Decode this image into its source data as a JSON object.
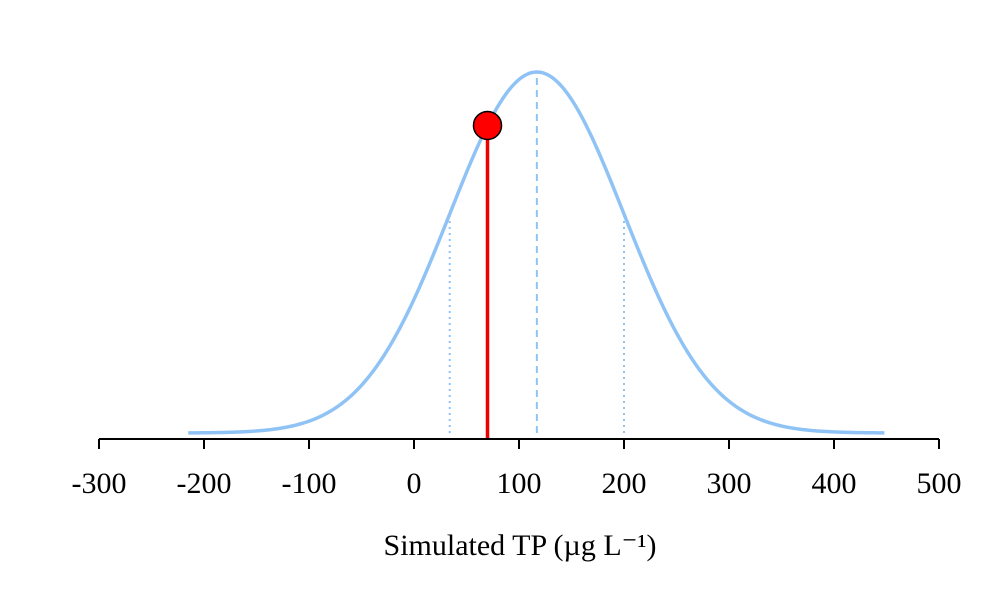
{
  "chart_data": {
    "type": "line",
    "title": "",
    "xlabel": "Simulated TP (µg L⁻¹)",
    "ylabel": "",
    "xlim": [
      -300,
      500
    ],
    "x_ticks": [
      -300,
      -200,
      -100,
      0,
      100,
      200,
      300,
      400,
      500
    ],
    "x_tick_labels": [
      "-300",
      "-200",
      "-100",
      "0",
      "100",
      "200",
      "300",
      "400",
      "500"
    ],
    "grid": false,
    "legend": "none",
    "y_axis_shown": false,
    "series": [
      {
        "kind": "normal-density-curve",
        "mean": 117,
        "sd": 83,
        "x_range": [
          -215,
          448
        ],
        "color": "#90C3F5"
      }
    ],
    "reference_lines": [
      {
        "kind": "mean",
        "x": 117,
        "style": "dashed",
        "color": "#90C3F5"
      },
      {
        "kind": "lower-1sd",
        "x": 34,
        "style": "dotted",
        "color": "#90C3F5"
      },
      {
        "kind": "upper-1sd",
        "x": 200,
        "style": "dotted",
        "color": "#90C3F5"
      }
    ],
    "marker": {
      "x": 70,
      "line_color": "#EE0000",
      "point_color": "#FF0000"
    }
  }
}
